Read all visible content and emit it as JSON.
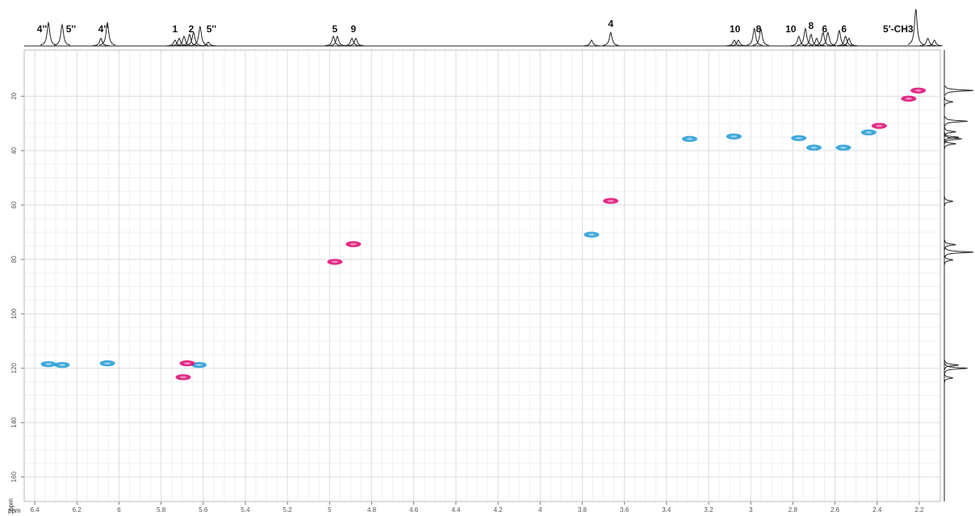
{
  "chart_data": {
    "type": "nmr2d",
    "x_label": "ppm",
    "y_label": "ppm",
    "xlim": [
      6.45,
      2.1
    ],
    "xticks": [
      6.4,
      6.2,
      6,
      5.8,
      5.6,
      5.4,
      5.2,
      5,
      4.8,
      4.6,
      4.4,
      4.2,
      4,
      3.8,
      3.6,
      3.4,
      3.2,
      3,
      2.8,
      2.6,
      2.4,
      2.2
    ],
    "ylim": [
      3,
      169
    ],
    "yticks": [
      20,
      40,
      60,
      80,
      100,
      120,
      140,
      160
    ],
    "grid": true,
    "series": [
      {
        "color": "#2a9fd8",
        "x": [
          6.335,
          6.27,
          6.055,
          5.62,
          3.756,
          3.29,
          3.08,
          2.772,
          2.7,
          2.56,
          2.44
        ],
        "y": [
          118.5,
          118.8,
          118.2,
          118.8,
          70.9,
          35.7,
          34.8,
          35.4,
          38.9,
          38.9,
          33.3
        ]
      },
      {
        "color": "#e0157a",
        "x": [
          5.676,
          5.695,
          4.975,
          4.887,
          3.665,
          2.205,
          2.25,
          2.39
        ],
        "y": [
          118.2,
          123.3,
          80.9,
          74.4,
          58.5,
          17.9,
          20.9,
          30.9
        ]
      }
    ],
    "f2_projection": {
      "color": "#222",
      "x": [
        6.335,
        6.27,
        6.086,
        6.055,
        5.734,
        5.714,
        5.691,
        5.665,
        5.646,
        5.615,
        5.576,
        4.982,
        4.963,
        4.894,
        4.875,
        3.756,
        3.665,
        3.078,
        3.059,
        2.983,
        2.952,
        2.772,
        2.741,
        2.714,
        2.687,
        2.657,
        2.634,
        2.58,
        2.55,
        2.534,
        2.216,
        2.159,
        2.128
      ],
      "heights": [
        0.6,
        0.55,
        0.2,
        0.6,
        0.15,
        0.2,
        0.25,
        0.3,
        0.35,
        0.5,
        0.1,
        0.25,
        0.25,
        0.2,
        0.2,
        0.15,
        0.35,
        0.15,
        0.15,
        0.45,
        0.45,
        0.25,
        0.45,
        0.3,
        0.2,
        0.35,
        0.35,
        0.4,
        0.25,
        0.2,
        0.95,
        0.2,
        0.15
      ]
    },
    "f1_projection": {
      "color": "#222",
      "y": [
        17.9,
        22.1,
        29.2,
        33.1,
        35.1,
        35.7,
        37.5,
        58.6,
        74.6,
        77.3,
        80.2,
        118.8,
        120,
        123.6
      ],
      "heights": [
        1.0,
        0.3,
        0.8,
        0.4,
        0.5,
        0.6,
        0.4,
        0.3,
        0.4,
        1.0,
        0.3,
        0.5,
        0.8,
        0.3
      ]
    },
    "annotations": [
      {
        "text": "4''",
        "x": 6.366
      },
      {
        "text": "5''",
        "x": 6.228
      },
      {
        "text": "4''",
        "x": 6.075
      },
      {
        "text": "1",
        "x": 5.734
      },
      {
        "text": "2",
        "x": 5.657
      },
      {
        "text": "5''",
        "x": 5.561
      },
      {
        "text": "5",
        "x": 4.975
      },
      {
        "text": "9",
        "x": 4.887
      },
      {
        "text": "4",
        "x": 3.665
      },
      {
        "text": "10",
        "x": 3.075
      },
      {
        "text": "8",
        "x": 2.963
      },
      {
        "text": "10",
        "x": 2.81
      },
      {
        "text": "8",
        "x": 2.714
      },
      {
        "text": "6",
        "x": 2.649
      },
      {
        "text": "6",
        "x": 2.557
      },
      {
        "text": "5'-CH3",
        "x": 2.3
      }
    ]
  }
}
